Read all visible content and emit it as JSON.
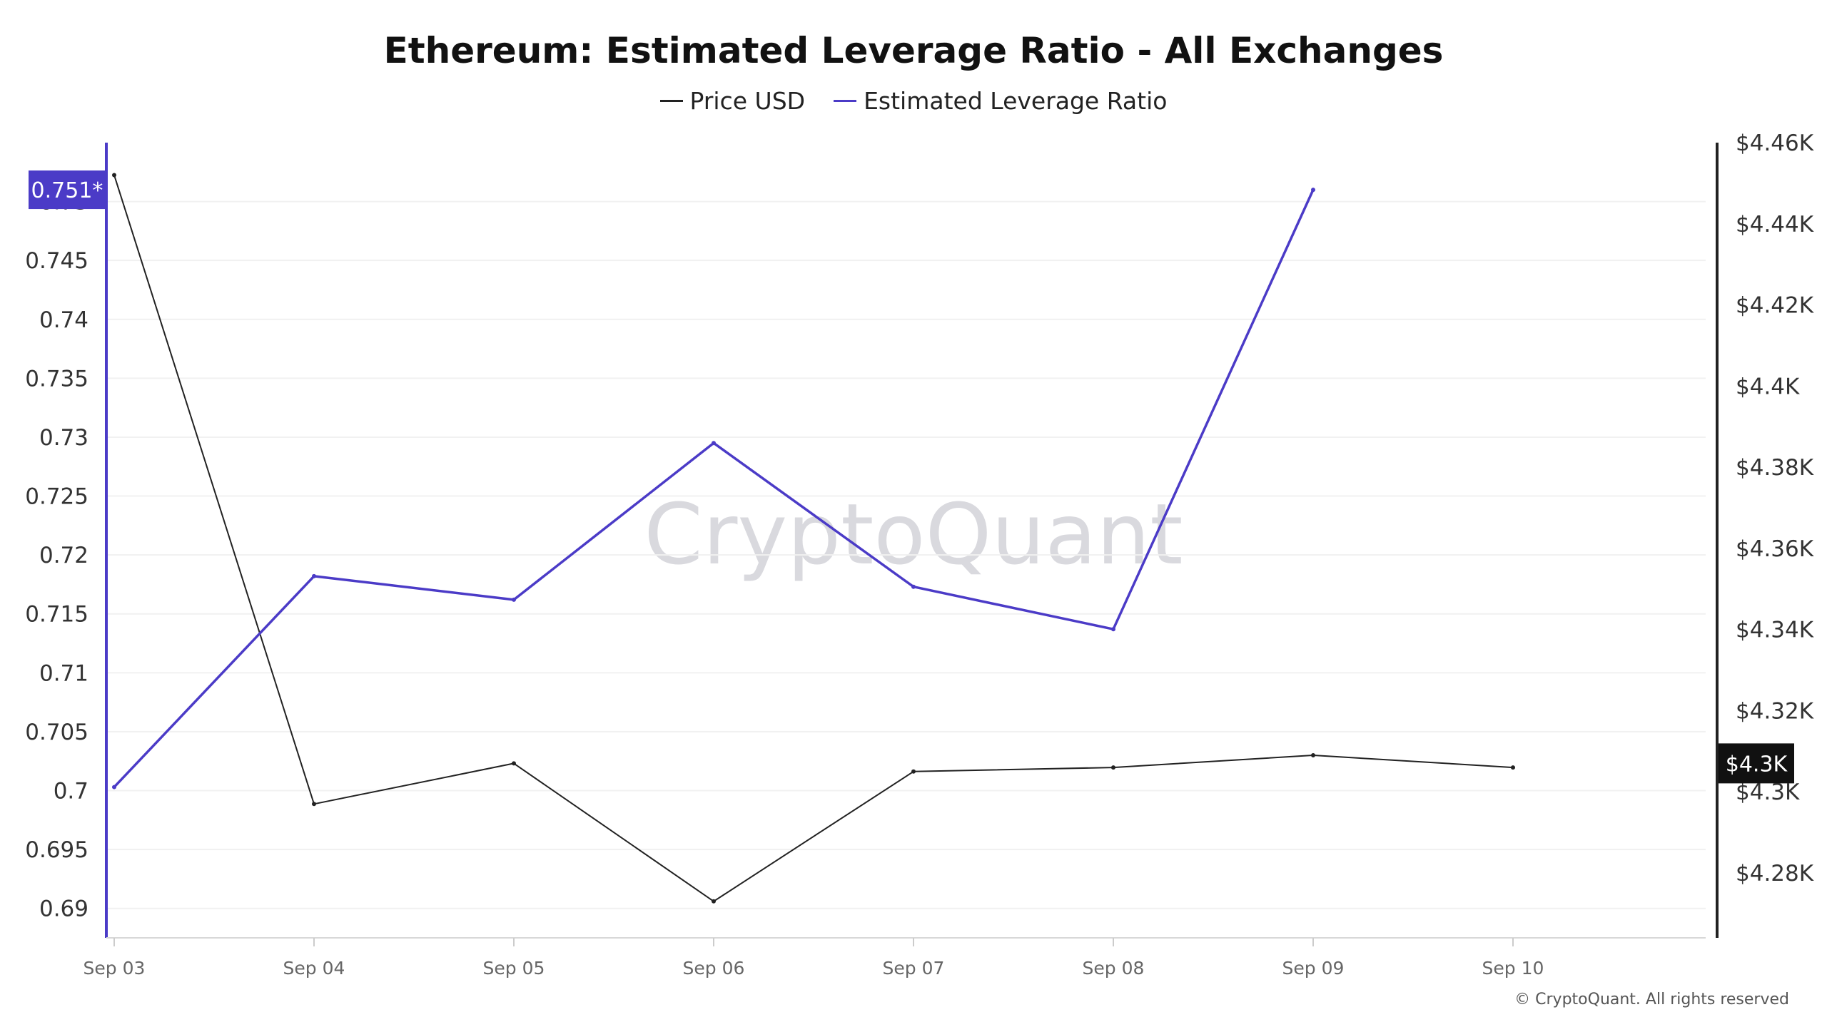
{
  "chart_data": {
    "type": "line",
    "title": "Ethereum: Estimated Leverage Ratio - All Exchanges",
    "categories": [
      "Sep 03",
      "Sep 04",
      "Sep 05",
      "Sep 06",
      "Sep 07",
      "Sep 08",
      "Sep 09",
      "Sep 10"
    ],
    "series": [
      {
        "name": "Price USD",
        "axis": "right",
        "color": "#222222",
        "values": [
          4452,
          4297,
          4307,
          4273,
          4305,
          4306,
          4309,
          4306
        ]
      },
      {
        "name": "Estimated Leverage Ratio",
        "axis": "left",
        "color": "#4b3bc7",
        "values": [
          0.7003,
          0.7182,
          0.7162,
          0.7295,
          0.7173,
          0.7137,
          0.751,
          null
        ]
      }
    ],
    "left_axis": {
      "ticks": [
        "0.69",
        "0.695",
        "0.7",
        "0.705",
        "0.71",
        "0.715",
        "0.72",
        "0.725",
        "0.73",
        "0.735",
        "0.74",
        "0.745",
        "0.75"
      ],
      "tick_values": [
        0.69,
        0.695,
        0.7,
        0.705,
        0.71,
        0.715,
        0.72,
        0.725,
        0.73,
        0.735,
        0.74,
        0.745,
        0.75
      ],
      "range": [
        0.6875,
        0.755
      ],
      "color": "#4b3bc7"
    },
    "right_axis": {
      "ticks": [
        "$4.28K",
        "$4.3K",
        "$4.32K",
        "$4.34K",
        "$4.36K",
        "$4.38K",
        "$4.4K",
        "$4.42K",
        "$4.44K",
        "$4.46K"
      ],
      "tick_values": [
        4280,
        4300,
        4320,
        4340,
        4360,
        4380,
        4400,
        4420,
        4440,
        4460
      ],
      "range": [
        4264,
        4460
      ],
      "color": "#222222"
    },
    "current_value_badges": {
      "left": "0.751*",
      "right": "$4.3K",
      "right_value": 4307
    },
    "grid": true,
    "legend_position": "top-center"
  },
  "watermark": "CryptoQuant",
  "copyright": "© CryptoQuant. All rights reserved"
}
